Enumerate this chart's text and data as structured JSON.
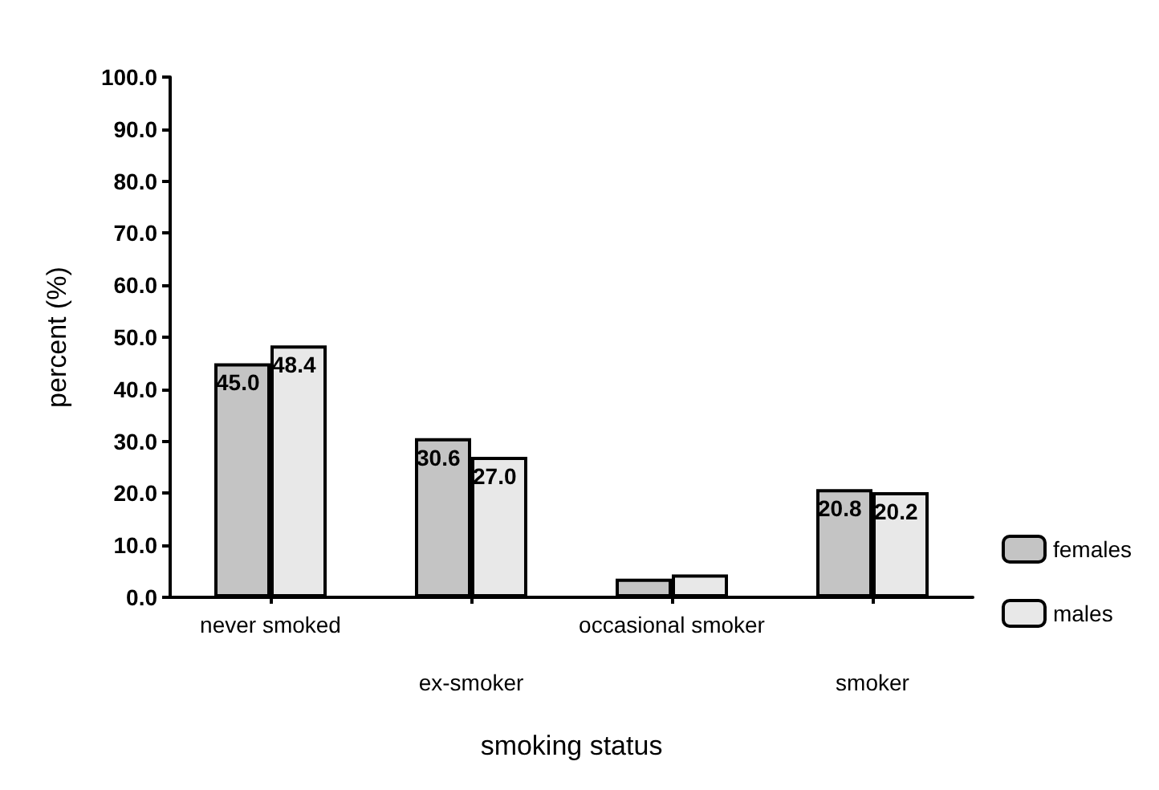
{
  "chart_data": {
    "type": "bar",
    "xlabel": "smoking status",
    "ylabel": "percent (%)",
    "categories": [
      "never smoked",
      "ex-smoker",
      "occasional smoker",
      "smoker"
    ],
    "series": [
      {
        "name": "females",
        "color": "#c4c4c4",
        "values": [
          45.0,
          30.6,
          3.6,
          20.8
        ],
        "value_labels": [
          "45.0",
          "30.6",
          null,
          "20.8"
        ]
      },
      {
        "name": "males",
        "color": "#e8e8e8",
        "values": [
          48.4,
          27.0,
          4.4,
          20.2
        ],
        "value_labels": [
          "48.4",
          "27.0",
          null,
          "20.2"
        ]
      }
    ],
    "ylim": [
      0,
      100
    ],
    "yticks": [
      {
        "value": 0,
        "label": "0.0"
      },
      {
        "value": 10,
        "label": "10.0"
      },
      {
        "value": 20,
        "label": "20.0"
      },
      {
        "value": 30,
        "label": "30.0"
      },
      {
        "value": 40,
        "label": "40.0"
      },
      {
        "value": 50,
        "label": "50.0"
      },
      {
        "value": 60,
        "label": "60.0"
      },
      {
        "value": 70,
        "label": "70.0"
      },
      {
        "value": 80,
        "label": "80.0"
      },
      {
        "value": 90,
        "label": "90.0"
      },
      {
        "value": 100,
        "label": "100.0"
      }
    ],
    "grid": false,
    "legend": "right"
  }
}
